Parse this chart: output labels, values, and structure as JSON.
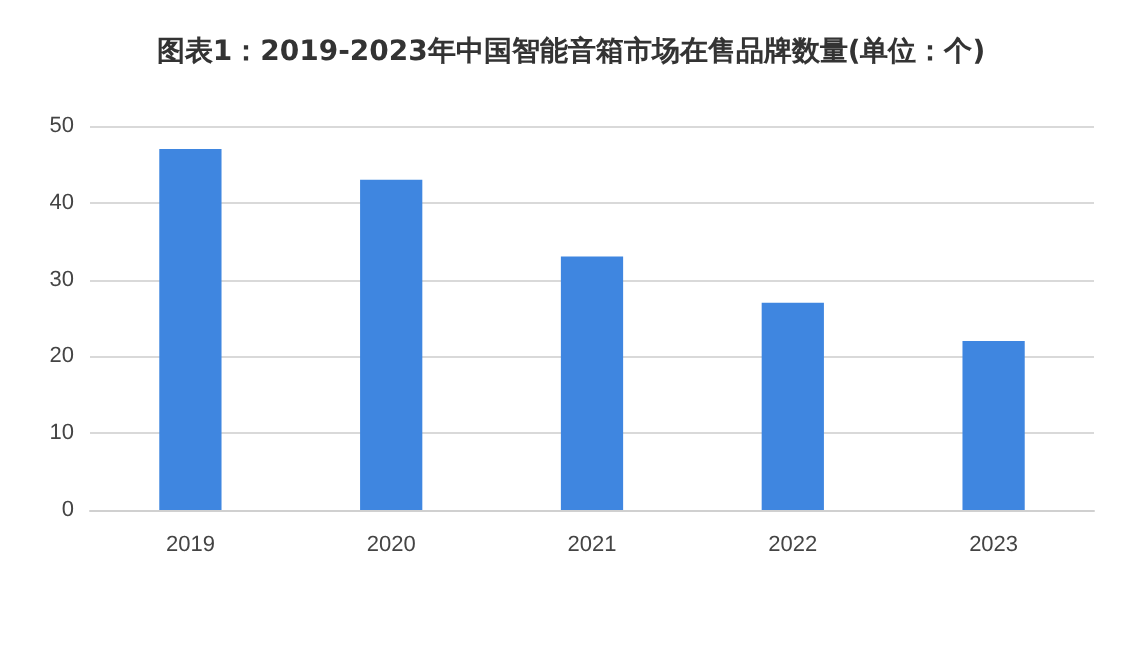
{
  "chart_data": {
    "type": "bar",
    "title": "图表1：2019-2023年中国智能音箱市场在售品牌数量(单位：个)",
    "categories": [
      "2019",
      "2020",
      "2021",
      "2022",
      "2023"
    ],
    "values": [
      47,
      43,
      33,
      27,
      22
    ],
    "color": "#3f86e0",
    "ylim": [
      0,
      50
    ],
    "yticks": [
      0,
      10,
      20,
      30,
      40,
      50
    ],
    "grid": "y"
  }
}
